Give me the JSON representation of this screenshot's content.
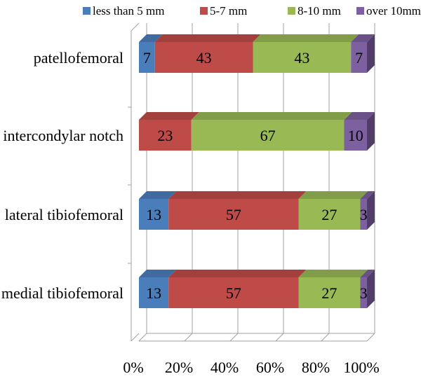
{
  "chart_data": {
    "type": "bar",
    "orientation": "horizontal",
    "stacked": "percent",
    "categories": [
      "patellofemoral",
      "intercondylar notch",
      "lateral tibiofemoral",
      "medial tibiofemoral"
    ],
    "series": [
      {
        "name": "less than 5 mm",
        "color": "#4a7ebb",
        "values": [
          7,
          0,
          13,
          13
        ]
      },
      {
        "name": "5-7 mm",
        "color": "#be4b48",
        "values": [
          43,
          23,
          57,
          57
        ]
      },
      {
        "name": "8-10 mm",
        "color": "#98b954",
        "values": [
          43,
          67,
          27,
          27
        ]
      },
      {
        "name": "over 10mm",
        "color": "#7d60a0",
        "values": [
          7,
          10,
          3,
          3
        ]
      }
    ],
    "xticks": [
      "0%",
      "20%",
      "40%",
      "60%",
      "80%",
      "100%"
    ],
    "xlim": [
      0,
      100
    ],
    "legend_position": "top",
    "grid": true
  }
}
